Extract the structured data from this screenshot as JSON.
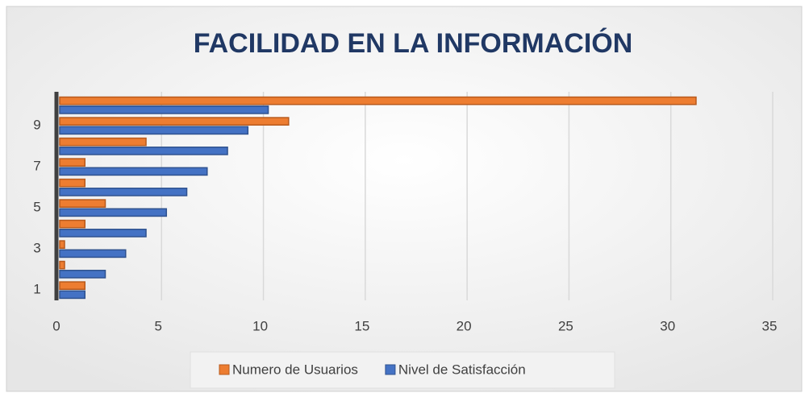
{
  "chart_data": {
    "type": "bar",
    "orientation": "horizontal",
    "title": "FACILIDAD EN LA INFORMACIÓN",
    "categories": [
      "1",
      null,
      "3",
      null,
      "5",
      null,
      "7",
      null,
      "9",
      null
    ],
    "series": [
      {
        "name": "Numero de Usuarios",
        "color": "#ed7d31",
        "values": [
          1,
          0,
          0,
          1,
          2,
          1,
          1,
          4,
          11,
          31
        ]
      },
      {
        "name": "Nivel de Satisfacción",
        "color": "#4472c4",
        "values": [
          1,
          2,
          3,
          4,
          5,
          6,
          7,
          8,
          9,
          10
        ]
      }
    ],
    "xlim": [
      0,
      35
    ],
    "xticks": [
      0,
      5,
      10,
      15,
      20,
      25,
      30,
      35
    ],
    "grid": true,
    "legend": "bottom"
  }
}
